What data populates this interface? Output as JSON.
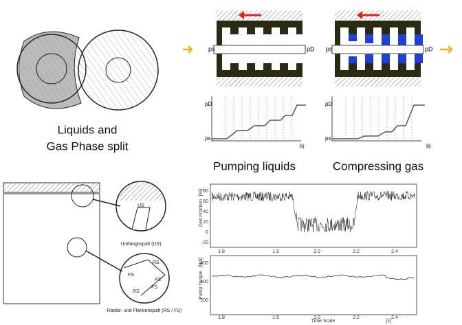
{
  "left_title": {
    "line1": "Liquids and",
    "line2": "Gas Phase split"
  },
  "pumps": {
    "left": {
      "inlet": "ps",
      "outlet": "pD",
      "caption": "Pumping liquids",
      "graph": {
        "top": "pD",
        "bottom": "ps",
        "axis": "ls"
      }
    },
    "right": {
      "inlet": "ps",
      "outlet": "pD",
      "caption": "Compressing gas",
      "graph": {
        "top": "pD",
        "bottom": "ps",
        "axis": "ls"
      }
    }
  },
  "detail": {
    "upper": {
      "gap": "US",
      "caption": "Umfangsspalt (US)"
    },
    "lower": {
      "labels": [
        "RS",
        "FS",
        "FS",
        "RS",
        "FS"
      ],
      "caption": "Radial- und Flankenspalt (RS / FS)"
    }
  },
  "gas_plot": {
    "y_label": "Gas Fraction",
    "y_unit": "[%]",
    "y_ticks": [
      "80",
      "60",
      "40",
      "20",
      "0",
      "-20"
    ],
    "x_ticks": [
      "1.8",
      "1.9",
      "2.0",
      "2.2",
      "2.4"
    ]
  },
  "torque_plot": {
    "y_label": "Pump Torque",
    "y_unit": "[Nm]",
    "y_ticks": [
      "600",
      "400",
      "200"
    ],
    "x_ticks": [
      "1.8",
      "1.9",
      "2.0",
      "2.2",
      "2.4"
    ],
    "x_label": "Time Scale",
    "x_unit": "[s]"
  }
}
